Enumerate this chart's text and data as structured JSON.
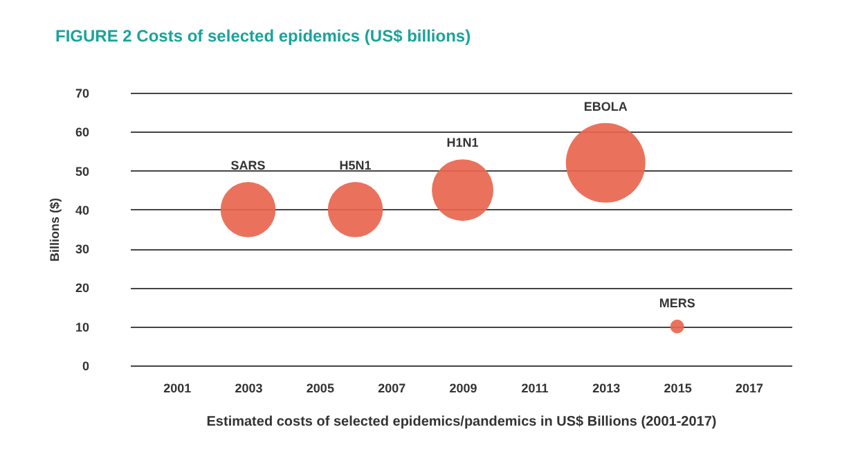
{
  "chart_data": {
    "type": "bubble",
    "title": "FIGURE 2 Costs of selected epidemics (US$ billions)",
    "xlabel": "Estimated costs of selected epidemics/pandemics in US$ Billions (2001-2017)",
    "ylabel": "Billions ($)",
    "series": [
      {
        "name": "SARS",
        "color": "#e8664f",
        "x": [
          2003
        ],
        "values": [
          40
        ],
        "sizes": [
          0.48
        ]
      },
      {
        "name": "H5N1",
        "color": "#e8664f",
        "x": [
          2006
        ],
        "values": [
          40
        ],
        "sizes": [
          0.48
        ]
      },
      {
        "name": "H1N1",
        "color": "#e8664f",
        "x": [
          2009
        ],
        "values": [
          45
        ],
        "sizes": [
          0.6
        ]
      },
      {
        "name": "EBOLA",
        "color": "#e8664f",
        "x": [
          2013
        ],
        "values": [
          52
        ],
        "sizes": [
          1
        ]
      },
      {
        "name": "MERS",
        "color": "#e8664f",
        "x": [
          2015
        ],
        "values": [
          10
        ],
        "sizes": [
          0.03
        ]
      }
    ],
    "xlim": [
      1999.7,
      2018.2
    ],
    "xticks": [
      2001,
      2003,
      2005,
      2007,
      2009,
      2011,
      2013,
      2015,
      2017
    ],
    "ylim": [
      0,
      70
    ],
    "yticks": [
      0,
      10,
      20,
      30,
      40,
      50,
      60,
      70
    ],
    "grid": "y",
    "legend": false
  }
}
